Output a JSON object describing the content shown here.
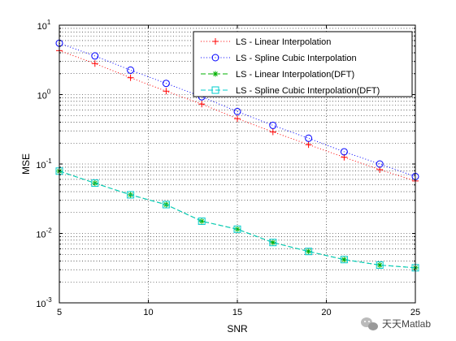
{
  "chart_data": {
    "type": "line",
    "title": "",
    "xlabel": "SNR",
    "ylabel": "MSE",
    "x": [
      5,
      7,
      9,
      11,
      13,
      15,
      17,
      19,
      21,
      23,
      25
    ],
    "xlim": [
      5,
      25
    ],
    "ylim": [
      0.001,
      10
    ],
    "yscale": "log",
    "grid": true,
    "legend_position": "top-right",
    "x_ticks": [
      5,
      10,
      15,
      20,
      25
    ],
    "x_tick_labels": [
      "5",
      "10",
      "15",
      "20",
      "25"
    ],
    "y_ticks": [
      {
        "value": 10,
        "base": "10",
        "exp": "1"
      },
      {
        "value": 1,
        "base": "10",
        "exp": "0"
      },
      {
        "value": 0.1,
        "base": "10",
        "exp": "-1"
      },
      {
        "value": 0.01,
        "base": "10",
        "exp": "-2"
      },
      {
        "value": 0.001,
        "base": "10",
        "exp": "-3"
      }
    ],
    "series": [
      {
        "name": "LS - Linear Interpolation",
        "color": "#ff0000",
        "line": "dotted",
        "marker": "plus",
        "values": [
          4.3,
          2.8,
          1.75,
          1.12,
          0.73,
          0.45,
          0.29,
          0.19,
          0.125,
          0.083,
          0.057
        ]
      },
      {
        "name": "LS - Spline Cubic Interpolation",
        "color": "#0000ff",
        "line": "dotted",
        "marker": "circle",
        "values": [
          5.5,
          3.6,
          2.25,
          1.45,
          0.93,
          0.57,
          0.36,
          0.235,
          0.15,
          0.1,
          0.066
        ]
      },
      {
        "name": "LS - Linear Interpolation(DFT)",
        "color": "#00b000",
        "line": "dashed",
        "marker": "star",
        "values": [
          0.079,
          0.053,
          0.036,
          0.026,
          0.015,
          0.0115,
          0.0074,
          0.0055,
          0.0042,
          0.0035,
          0.0032
        ]
      },
      {
        "name": "LS - Spline Cubic Interpolation(DFT)",
        "color": "#00cccc",
        "line": "dashed",
        "marker": "square",
        "values": [
          0.079,
          0.053,
          0.036,
          0.026,
          0.015,
          0.0115,
          0.0074,
          0.0055,
          0.0042,
          0.0035,
          0.0032
        ]
      }
    ]
  },
  "watermark": {
    "text": "天天Matlab",
    "icon": "wechat-icon"
  }
}
